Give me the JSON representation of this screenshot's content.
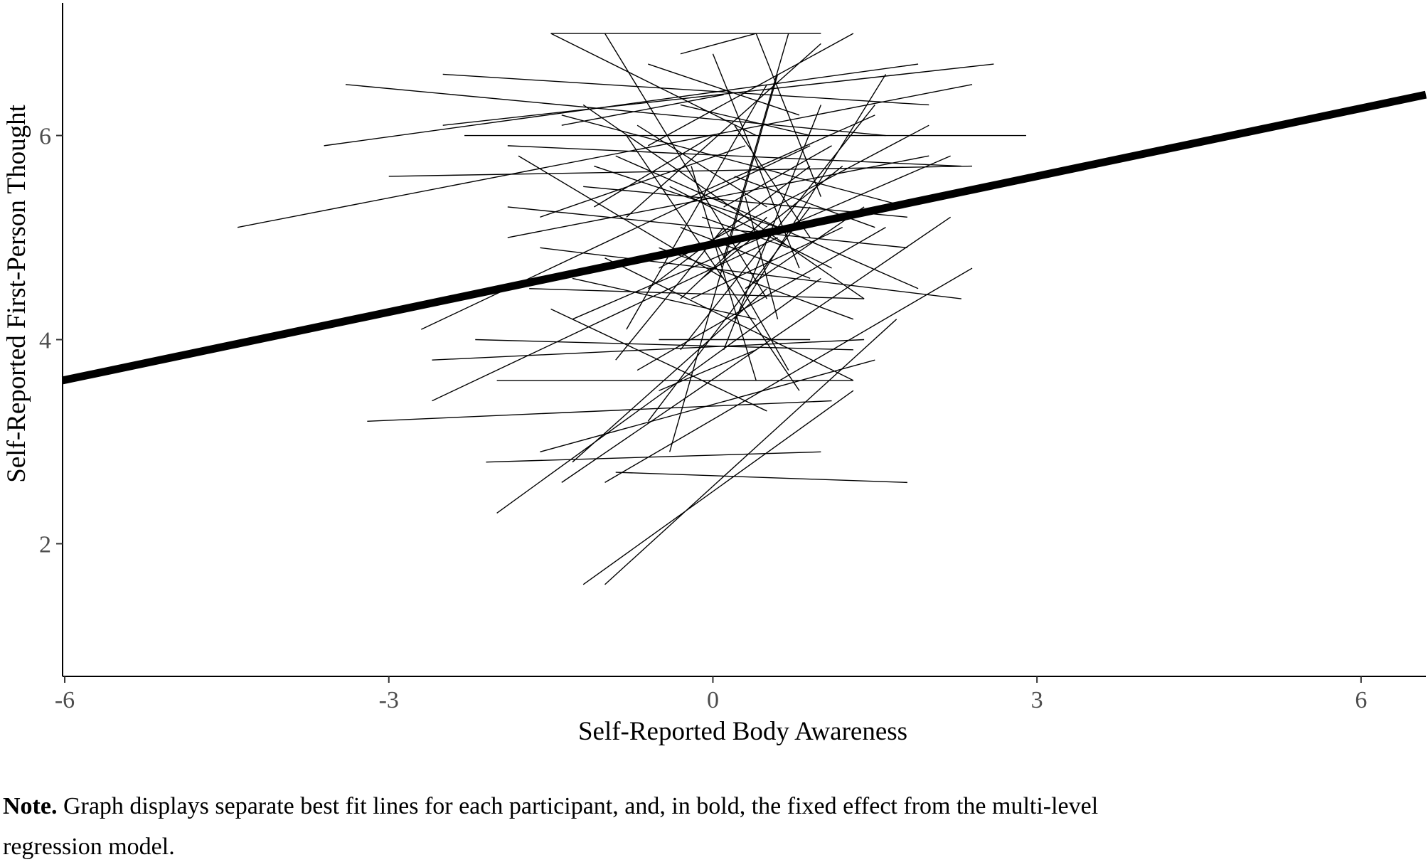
{
  "chart_data": {
    "type": "line",
    "title": "",
    "xlabel": "Self-Reported Body Awareness",
    "ylabel": "Self-Reported First-Person Thought",
    "xlim": [
      -6.02,
      6.6
    ],
    "ylim": [
      0.7,
      7.3
    ],
    "x_ticks": [
      -6,
      -3,
      0,
      3,
      6
    ],
    "y_ticks": [
      2,
      4,
      6
    ],
    "x_tick_labels": [
      "-6",
      "-3",
      "0",
      "3",
      "6"
    ],
    "y_tick_labels": [
      "2",
      "4",
      "6"
    ],
    "grid": false,
    "legend": "none",
    "fixed_effect": {
      "x": [
        -6.02,
        6.6
      ],
      "y": [
        3.6,
        6.4
      ],
      "style": "bold"
    },
    "participant_lines": [
      [
        -1.5,
        7.0,
        1.0,
        7.0
      ],
      [
        -1.5,
        7.0,
        0.4,
        6.0
      ],
      [
        -0.3,
        6.8,
        0.4,
        7.0
      ],
      [
        -0.6,
        5.9,
        1.3,
        7.0
      ],
      [
        -3.4,
        6.5,
        1.6,
        6.0
      ],
      [
        -2.5,
        6.6,
        2.0,
        6.3
      ],
      [
        -3.6,
        5.9,
        1.9,
        6.7
      ],
      [
        -4.4,
        5.1,
        2.4,
        6.5
      ],
      [
        -2.5,
        6.1,
        2.6,
        6.7
      ],
      [
        -3.0,
        5.6,
        2.4,
        5.7
      ],
      [
        -2.3,
        6.0,
        2.9,
        6.0
      ],
      [
        -1.9,
        5.9,
        2.3,
        5.7
      ],
      [
        -1.4,
        6.2,
        1.8,
        5.3
      ],
      [
        -1.9,
        5.3,
        1.8,
        4.9
      ],
      [
        -1.9,
        5.0,
        2.0,
        5.8
      ],
      [
        -2.7,
        4.1,
        0.9,
        5.9
      ],
      [
        -1.6,
        4.9,
        2.3,
        4.4
      ],
      [
        -1.7,
        4.5,
        1.4,
        4.4
      ],
      [
        -2.6,
        3.8,
        1.4,
        4.0
      ],
      [
        -2.6,
        3.4,
        0.6,
        5.0
      ],
      [
        -2.2,
        4.0,
        1.3,
        3.9
      ],
      [
        -2.0,
        3.6,
        1.3,
        3.6
      ],
      [
        -3.2,
        3.2,
        1.1,
        3.4
      ],
      [
        -1.6,
        2.9,
        1.5,
        3.8
      ],
      [
        -2.1,
        2.8,
        1.0,
        2.9
      ],
      [
        -2.0,
        2.3,
        1.0,
        4.6
      ],
      [
        -1.0,
        2.6,
        2.4,
        4.7
      ],
      [
        -0.9,
        2.7,
        1.8,
        2.6
      ],
      [
        -1.2,
        1.6,
        1.3,
        3.5
      ],
      [
        -1.0,
        1.6,
        1.7,
        4.2
      ],
      [
        -1.4,
        2.6,
        2.2,
        5.2
      ],
      [
        -1.3,
        2.8,
        0.5,
        4.5
      ],
      [
        -1.5,
        4.3,
        0.5,
        3.3
      ],
      [
        -1.0,
        4.8,
        1.3,
        3.6
      ],
      [
        -0.8,
        6.0,
        0.8,
        3.5
      ],
      [
        -1.2,
        6.3,
        1.4,
        4.4
      ],
      [
        -1.0,
        7.0,
        0.5,
        4.4
      ],
      [
        0.0,
        6.8,
        0.8,
        4.7
      ],
      [
        -0.9,
        5.8,
        1.9,
        4.5
      ],
      [
        -1.2,
        5.5,
        1.8,
        5.2
      ],
      [
        -0.8,
        5.2,
        1.0,
        6.9
      ],
      [
        -0.5,
        4.7,
        2.0,
        6.1
      ],
      [
        -0.3,
        3.9,
        1.5,
        6.3
      ],
      [
        -0.4,
        2.9,
        0.6,
        6.6
      ],
      [
        0.4,
        7.0,
        1.0,
        5.4
      ],
      [
        0.7,
        7.0,
        0.1,
        4.8
      ],
      [
        -1.3,
        4.2,
        2.2,
        5.8
      ],
      [
        -0.7,
        3.7,
        1.6,
        5.1
      ],
      [
        -0.6,
        3.2,
        0.9,
        5.3
      ],
      [
        -0.4,
        5.5,
        1.1,
        4.7
      ],
      [
        -0.6,
        4.5,
        0.9,
        5.7
      ],
      [
        -0.2,
        4.4,
        1.2,
        5.1
      ],
      [
        0.1,
        3.9,
        1.0,
        6.3
      ],
      [
        -1.1,
        5.7,
        0.6,
        5.1
      ],
      [
        -0.8,
        4.1,
        0.5,
        6.5
      ],
      [
        -0.2,
        5.4,
        1.5,
        6.2
      ],
      [
        -0.3,
        6.3,
        0.9,
        6.0
      ],
      [
        0.2,
        4.2,
        1.6,
        6.6
      ],
      [
        -0.5,
        4.9,
        1.3,
        4.2
      ],
      [
        -0.1,
        4.6,
        1.2,
        5.7
      ],
      [
        -1.8,
        5.8,
        0.1,
        4.6
      ],
      [
        -1.6,
        5.2,
        0.3,
        5.9
      ],
      [
        -1.3,
        4.6,
        0.4,
        4.2
      ],
      [
        -0.9,
        3.8,
        0.1,
        5.1
      ],
      [
        -0.7,
        6.1,
        0.5,
        5.3
      ],
      [
        -0.2,
        5.7,
        0.4,
        3.6
      ],
      [
        0.0,
        5.0,
        0.7,
        3.7
      ],
      [
        0.2,
        6.1,
        0.9,
        5.0
      ],
      [
        -0.5,
        3.5,
        0.4,
        3.9
      ],
      [
        -0.3,
        4.4,
        0.5,
        5.2
      ],
      [
        0.3,
        5.4,
        0.6,
        4.2
      ],
      [
        -0.1,
        5.2,
        0.7,
        4.9
      ],
      [
        -1.4,
        6.1,
        0.1,
        6.4
      ],
      [
        -0.6,
        6.7,
        0.8,
        6.2
      ],
      [
        -1.1,
        5.3,
        0.0,
        6.0
      ],
      [
        0.1,
        5.3,
        1.1,
        5.9
      ],
      [
        0.3,
        4.5,
        1.4,
        5.3
      ],
      [
        -0.3,
        5.1,
        0.9,
        4.6
      ],
      [
        0.2,
        5.6,
        1.5,
        5.1
      ],
      [
        -0.5,
        4.0,
        0.9,
        4.0
      ]
    ]
  },
  "note": {
    "label": "Note.",
    "text": "Graph displays separate best fit lines for each participant, and, in bold, the fixed effect from the multi-level regression model."
  }
}
